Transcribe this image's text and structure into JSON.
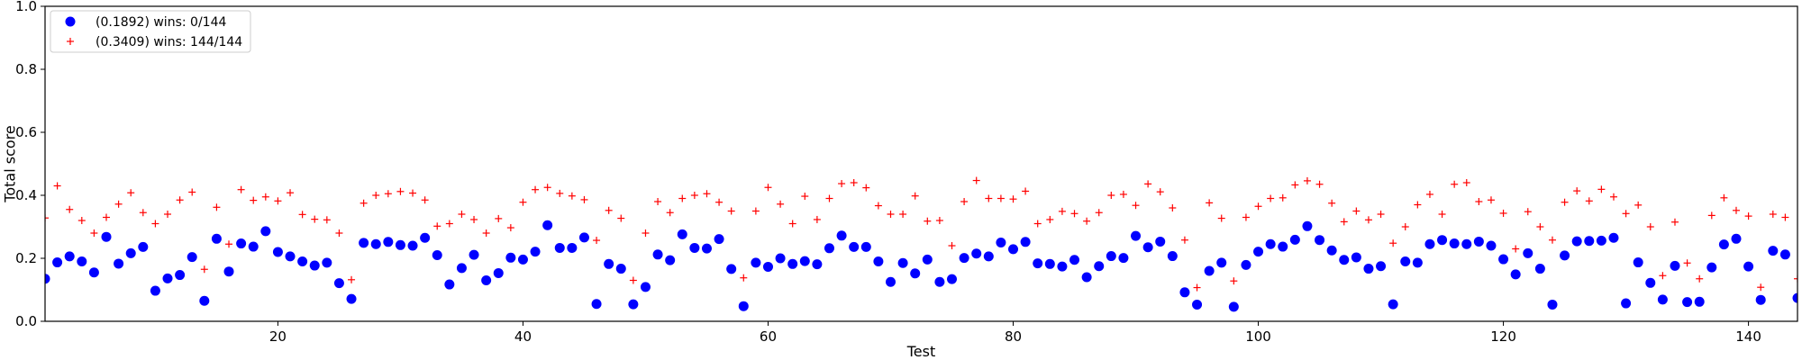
{
  "chart_data": {
    "type": "scatter",
    "xlabel": "Test",
    "ylabel": "Total score",
    "xlim": [
      1,
      144
    ],
    "ylim": [
      0.0,
      1.0
    ],
    "xticks": [
      20,
      40,
      60,
      80,
      100,
      120,
      140
    ],
    "yticks": [
      0.0,
      0.2,
      0.4,
      0.6,
      0.8,
      1.0
    ],
    "xtick_labels": [
      "20",
      "40",
      "60",
      "80",
      "100",
      "120",
      "140"
    ],
    "ytick_labels": [
      "0.0",
      "0.2",
      "0.4",
      "0.6",
      "0.8",
      "1.0"
    ],
    "grid": false,
    "legend": "top-left",
    "x": [
      1,
      2,
      3,
      4,
      5,
      6,
      7,
      8,
      9,
      10,
      11,
      12,
      13,
      14,
      15,
      16,
      17,
      18,
      19,
      20,
      21,
      22,
      23,
      24,
      25,
      26,
      27,
      28,
      29,
      30,
      31,
      32,
      33,
      34,
      35,
      36,
      37,
      38,
      39,
      40,
      41,
      42,
      43,
      44,
      45,
      46,
      47,
      48,
      49,
      50,
      51,
      52,
      53,
      54,
      55,
      56,
      57,
      58,
      59,
      60,
      61,
      62,
      63,
      64,
      65,
      66,
      67,
      68,
      69,
      70,
      71,
      72,
      73,
      74,
      75,
      76,
      77,
      78,
      79,
      80,
      81,
      82,
      83,
      84,
      85,
      86,
      87,
      88,
      89,
      90,
      91,
      92,
      93,
      94,
      95,
      96,
      97,
      98,
      99,
      100,
      101,
      102,
      103,
      104,
      105,
      106,
      107,
      108,
      109,
      110,
      111,
      112,
      113,
      114,
      115,
      116,
      117,
      118,
      119,
      120,
      121,
      122,
      123,
      124,
      125,
      126,
      127,
      128,
      129,
      130,
      131,
      132,
      133,
      134,
      135,
      136,
      137,
      138,
      139,
      140,
      141,
      142,
      143,
      144
    ],
    "series": [
      {
        "name": "(0.1892) wins: 0/144",
        "marker": "circle",
        "color": "#0000ff",
        "values": [
          0.135,
          0.187,
          0.206,
          0.19,
          0.155,
          0.268,
          0.183,
          0.216,
          0.236,
          0.097,
          0.136,
          0.147,
          0.204,
          0.065,
          0.262,
          0.158,
          0.247,
          0.237,
          0.286,
          0.22,
          0.206,
          0.19,
          0.177,
          0.186,
          0.121,
          0.071,
          0.249,
          0.245,
          0.252,
          0.242,
          0.24,
          0.265,
          0.21,
          0.117,
          0.169,
          0.211,
          0.13,
          0.153,
          0.202,
          0.196,
          0.221,
          0.305,
          0.233,
          0.233,
          0.266,
          0.055,
          0.182,
          0.167,
          0.054,
          0.109,
          0.212,
          0.194,
          0.276,
          0.233,
          0.231,
          0.261,
          0.166,
          0.048,
          0.186,
          0.173,
          0.2,
          0.182,
          0.191,
          0.181,
          0.232,
          0.272,
          0.236,
          0.236,
          0.19,
          0.125,
          0.185,
          0.152,
          0.196,
          0.125,
          0.134,
          0.201,
          0.215,
          0.206,
          0.25,
          0.229,
          0.252,
          0.184,
          0.182,
          0.174,
          0.195,
          0.14,
          0.175,
          0.207,
          0.201,
          0.271,
          0.235,
          0.253,
          0.207,
          0.092,
          0.053,
          0.16,
          0.186,
          0.046,
          0.179,
          0.221,
          0.245,
          0.237,
          0.259,
          0.302,
          0.258,
          0.225,
          0.195,
          0.203,
          0.167,
          0.175,
          0.054,
          0.19,
          0.186,
          0.245,
          0.258,
          0.247,
          0.245,
          0.253,
          0.24,
          0.197,
          0.149,
          0.216,
          0.167,
          0.053,
          0.209,
          0.254,
          0.255,
          0.256,
          0.265,
          0.057,
          0.187,
          0.122,
          0.069,
          0.176,
          0.061,
          0.062,
          0.171,
          0.244,
          0.262,
          0.174,
          0.068,
          0.224,
          0.212,
          0.074
        ]
      },
      {
        "name": "(0.3409) wins: 144/144",
        "marker": "plus",
        "color": "#ff0000",
        "values": [
          0.328,
          0.43,
          0.355,
          0.32,
          0.28,
          0.33,
          0.372,
          0.408,
          0.345,
          0.31,
          0.34,
          0.385,
          0.41,
          0.165,
          0.362,
          0.245,
          0.418,
          0.384,
          0.395,
          0.382,
          0.408,
          0.339,
          0.324,
          0.322,
          0.28,
          0.132,
          0.375,
          0.4,
          0.405,
          0.412,
          0.407,
          0.385,
          0.302,
          0.31,
          0.34,
          0.323,
          0.28,
          0.326,
          0.297,
          0.378,
          0.418,
          0.425,
          0.406,
          0.398,
          0.386,
          0.257,
          0.352,
          0.327,
          0.13,
          0.28,
          0.38,
          0.345,
          0.39,
          0.4,
          0.405,
          0.378,
          0.35,
          0.138,
          0.35,
          0.425,
          0.372,
          0.31,
          0.397,
          0.323,
          0.39,
          0.437,
          0.44,
          0.424,
          0.367,
          0.34,
          0.34,
          0.398,
          0.318,
          0.32,
          0.24,
          0.38,
          0.447,
          0.39,
          0.39,
          0.388,
          0.413,
          0.31,
          0.323,
          0.349,
          0.342,
          0.318,
          0.345,
          0.4,
          0.403,
          0.368,
          0.436,
          0.411,
          0.36,
          0.258,
          0.107,
          0.376,
          0.327,
          0.128,
          0.33,
          0.365,
          0.39,
          0.392,
          0.433,
          0.446,
          0.435,
          0.375,
          0.316,
          0.35,
          0.322,
          0.34,
          0.248,
          0.3,
          0.37,
          0.403,
          0.34,
          0.435,
          0.44,
          0.38,
          0.385,
          0.343,
          0.23,
          0.348,
          0.3,
          0.258,
          0.378,
          0.414,
          0.382,
          0.419,
          0.395,
          0.342,
          0.369,
          0.3,
          0.145,
          0.315,
          0.185,
          0.135,
          0.336,
          0.392,
          0.352,
          0.334,
          0.108,
          0.34,
          0.33,
          0.135
        ]
      }
    ]
  }
}
